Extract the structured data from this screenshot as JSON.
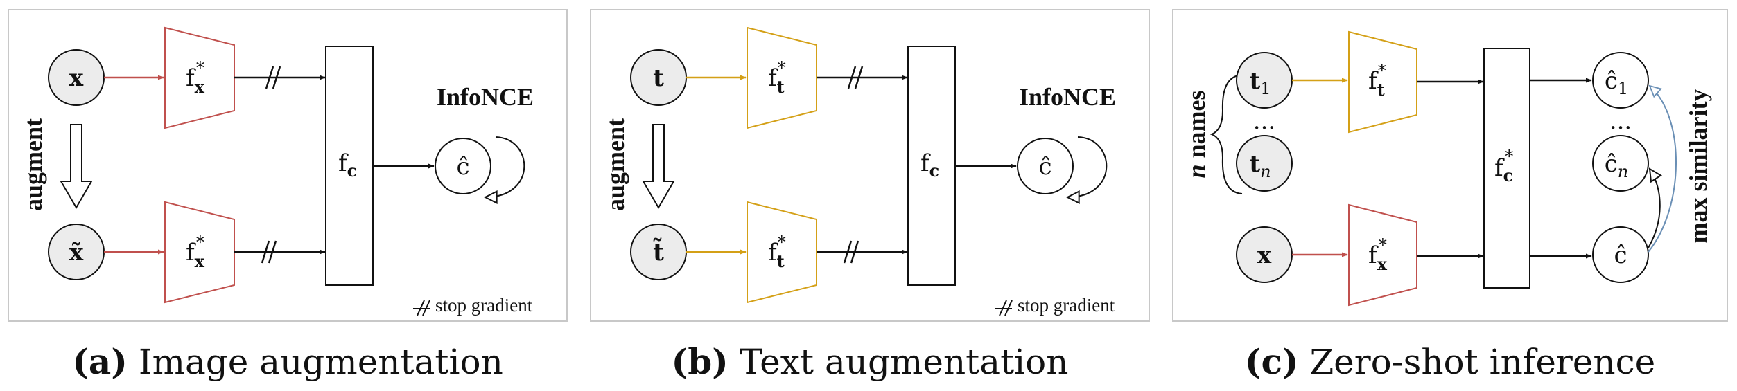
{
  "captions": {
    "a": {
      "prefix": "(a)",
      "text": " Image augmentation"
    },
    "b": {
      "prefix": "(b)",
      "text": " Text augmentation"
    },
    "c": {
      "prefix": "(c)",
      "text": " Zero-shot inference"
    }
  },
  "panel_a": {
    "input": "x",
    "augmented": "x̃",
    "encoder_top": "f",
    "encoder_top_sub": "x",
    "encoder_bottom": "f",
    "encoder_bottom_sub": "x",
    "star": "*",
    "combiner": "f",
    "combiner_sub": "c",
    "output": "ĉ",
    "loss": "InfoNCE",
    "augment": "augment",
    "legend": "stop gradient"
  },
  "panel_b": {
    "input": "t",
    "augmented": "t̃",
    "encoder_top": "f",
    "encoder_top_sub": "t",
    "encoder_bottom": "f",
    "encoder_bottom_sub": "t",
    "star": "*",
    "combiner": "f",
    "combiner_sub": "c",
    "output": "ĉ",
    "loss": "InfoNCE",
    "augment": "augment",
    "legend": "stop gradient"
  },
  "panel_c": {
    "name_first": "t",
    "name_first_sub": "1",
    "name_last": "t",
    "name_last_sub": "n",
    "ellipsis": "...",
    "names_label_n": "n",
    "names_label": " names",
    "image_input": "x",
    "text_encoder": "f",
    "text_encoder_sub": "t",
    "image_encoder": "f",
    "image_encoder_sub": "x",
    "star": "*",
    "combiner": "f",
    "combiner_sub": "c",
    "out_first": "ĉ",
    "out_first_sub": "1",
    "out_last": "ĉ",
    "out_last_sub": "n",
    "out_image": "ĉ",
    "similarity_label": "max similarity"
  },
  "colors": {
    "image_path": "#c0504d",
    "text_path": "#d4a017",
    "similarity_arc": "#6a8fb5",
    "node_fill": "#ececec",
    "panel_border": "#c8c8c8"
  }
}
